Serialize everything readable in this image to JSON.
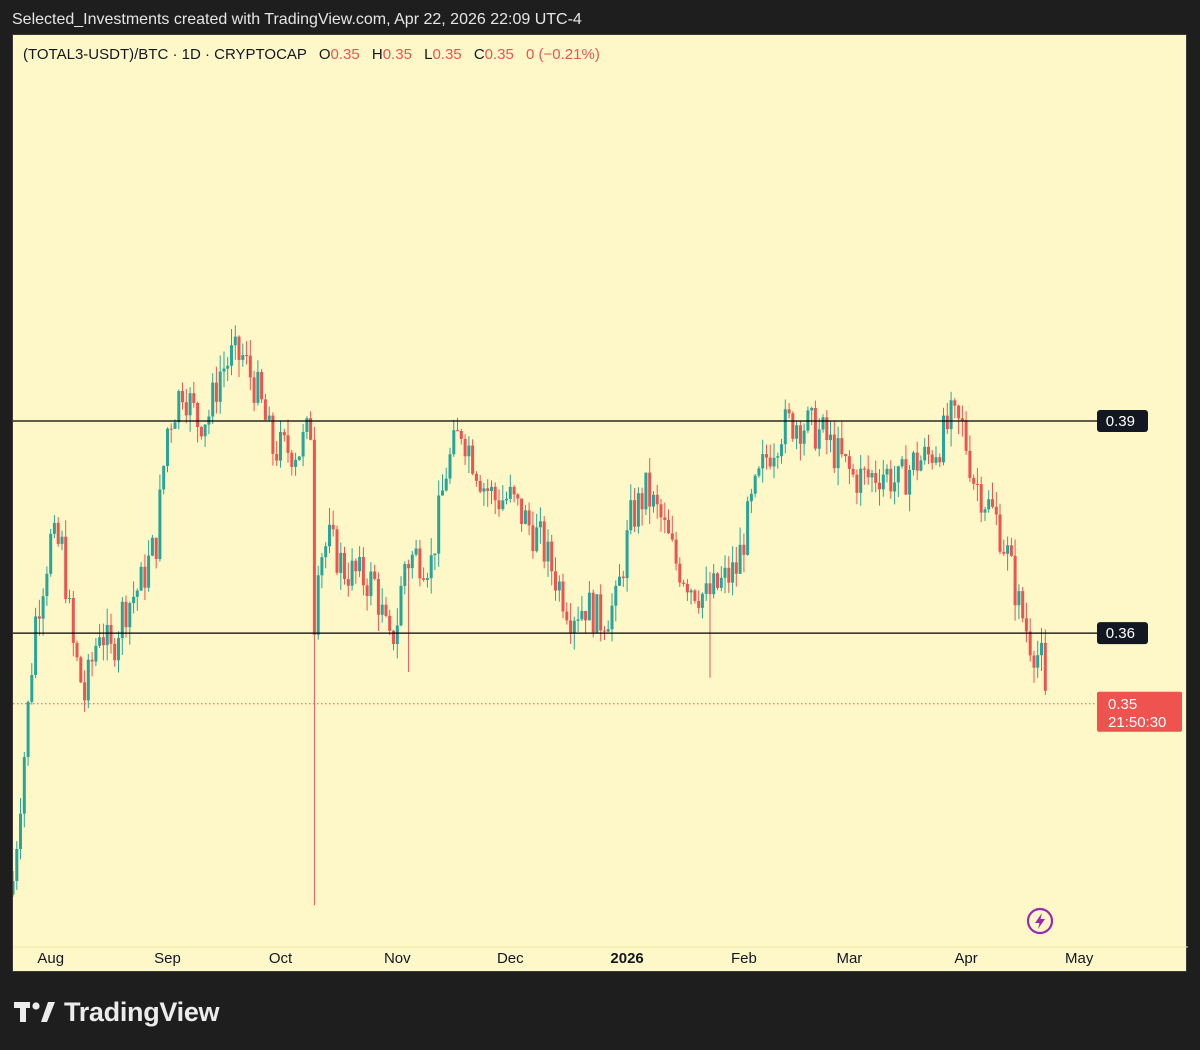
{
  "header": {
    "attribution": "Selected_Investments created with TradingView.com, Apr 22, 2026 22:09 UTC-4"
  },
  "legend": {
    "symbol": "(TOTAL3-USDT)/BTC · 1D · CRYPTOCAP",
    "open_label": "O",
    "open": "0.35",
    "high_label": "H",
    "high": "0.35",
    "low_label": "L",
    "low": "0.35",
    "close_label": "C",
    "close": "0.35",
    "change": "0 (−0.21%)"
  },
  "price_labels": {
    "level_upper": "0.39",
    "level_lower": "0.36",
    "last_price": "0.35",
    "countdown": "21:50:30"
  },
  "footer": {
    "brand": "TradingView"
  },
  "icons": {
    "flash": "lightning-bolt-icon",
    "logo": "tradingview-logo-icon"
  },
  "colors": {
    "background": "#fef8c8",
    "up": "#26a69a",
    "down": "#ef5350",
    "level_line": "#000000",
    "accent": "#9c27b0"
  },
  "chart_data": {
    "type": "candlestick",
    "x_tick_labels": [
      "Aug",
      "Sep",
      "Oct",
      "Nov",
      "Dec",
      "2026",
      "Feb",
      "Mar",
      "Apr",
      "May"
    ],
    "x_range": [
      "2025-07-22",
      "2026-05-06"
    ],
    "y_range": [
      0.3215,
      0.4035
    ],
    "horizontal_levels": [
      0.39,
      0.36
    ],
    "last_price": 0.35,
    "close_series": {
      "dates": [
        "2025-07-22",
        "2025-07-25",
        "2025-07-28",
        "2025-08-01",
        "2025-08-04",
        "2025-08-07",
        "2025-08-10",
        "2025-08-14",
        "2025-08-17",
        "2025-08-20",
        "2025-08-25",
        "2025-08-29",
        "2025-09-01",
        "2025-09-05",
        "2025-09-09",
        "2025-09-12",
        "2025-09-15",
        "2025-09-18",
        "2025-09-21",
        "2025-09-25",
        "2025-09-29",
        "2025-10-03",
        "2025-10-06",
        "2025-10-09",
        "2025-10-10",
        "2025-10-11",
        "2025-10-14",
        "2025-10-18",
        "2025-10-22",
        "2025-10-26",
        "2025-10-30",
        "2025-11-01",
        "2025-11-03",
        "2025-11-06",
        "2025-11-10",
        "2025-11-14",
        "2025-11-18",
        "2025-11-21",
        "2025-11-24",
        "2025-11-27",
        "2025-12-01",
        "2025-12-05",
        "2025-12-09",
        "2025-12-13",
        "2025-12-17",
        "2025-12-21",
        "2025-12-25",
        "2025-12-29",
        "2026-01-02",
        "2026-01-06",
        "2026-01-10",
        "2026-01-14",
        "2026-01-18",
        "2026-01-22",
        "2026-01-26",
        "2026-01-30",
        "2026-02-03",
        "2026-02-07",
        "2026-02-11",
        "2026-02-15",
        "2026-02-19",
        "2026-02-22",
        "2026-02-26",
        "2026-03-02",
        "2026-03-06",
        "2026-03-10",
        "2026-03-14",
        "2026-03-18",
        "2026-03-22",
        "2026-03-25",
        "2026-03-28",
        "2026-03-31",
        "2026-04-03",
        "2026-04-06",
        "2026-04-09",
        "2026-04-12",
        "2026-04-15",
        "2026-04-18",
        "2026-04-21",
        "2026-04-22"
      ],
      "values": [
        0.325,
        0.343,
        0.362,
        0.373,
        0.372,
        0.358,
        0.351,
        0.361,
        0.357,
        0.363,
        0.367,
        0.373,
        0.389,
        0.395,
        0.39,
        0.391,
        0.397,
        0.399,
        0.399,
        0.394,
        0.386,
        0.386,
        0.386,
        0.389,
        0.362,
        0.371,
        0.373,
        0.369,
        0.368,
        0.367,
        0.358,
        0.362,
        0.37,
        0.371,
        0.37,
        0.383,
        0.389,
        0.385,
        0.381,
        0.379,
        0.379,
        0.376,
        0.373,
        0.368,
        0.363,
        0.364,
        0.362,
        0.364,
        0.376,
        0.38,
        0.376,
        0.37,
        0.367,
        0.365,
        0.367,
        0.369,
        0.378,
        0.385,
        0.389,
        0.39,
        0.389,
        0.388,
        0.385,
        0.382,
        0.382,
        0.383,
        0.381,
        0.384,
        0.385,
        0.387,
        0.39,
        0.389,
        0.382,
        0.379,
        0.376,
        0.371,
        0.364,
        0.359,
        0.356,
        0.35
      ]
    }
  }
}
